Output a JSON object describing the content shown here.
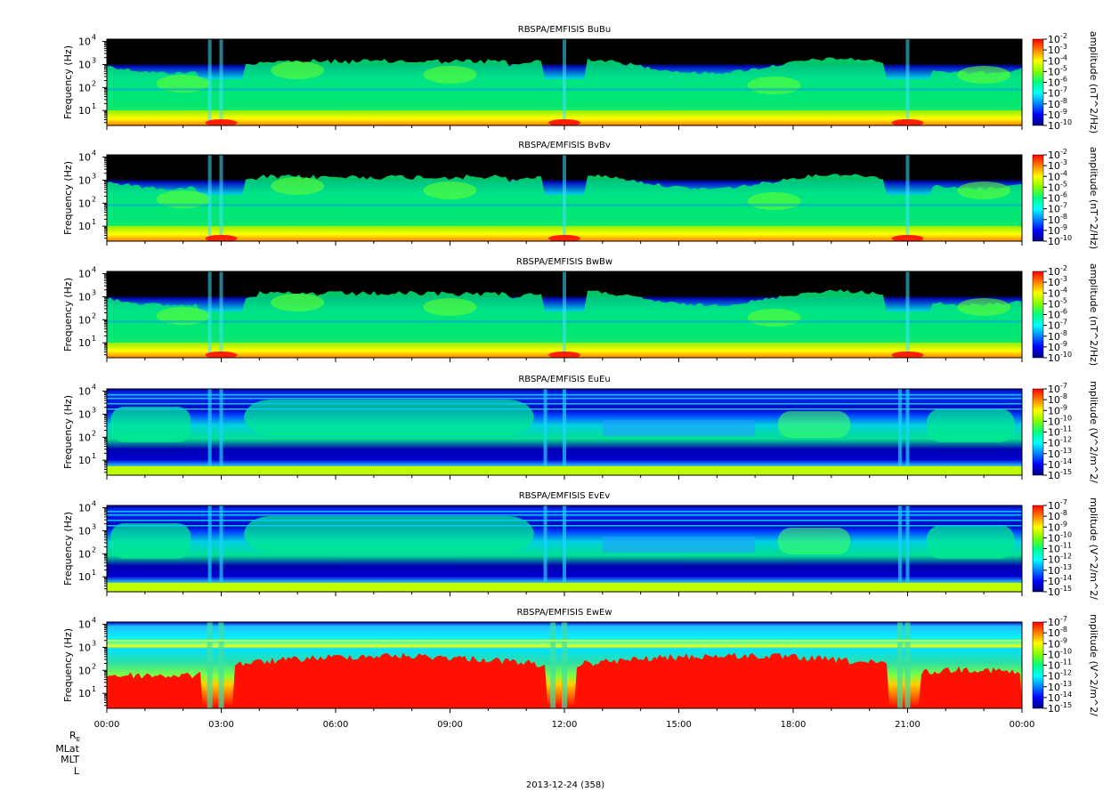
{
  "chart_data": [
    {
      "type": "heatmap",
      "title": "RBSPA/EMFISIS  BuBu",
      "ylabel": "Frequency (Hz)",
      "y_scale": "log",
      "y_ticks": [
        {
          "base": "10",
          "exp": "1"
        },
        {
          "base": "10",
          "exp": "2"
        },
        {
          "base": "10",
          "exp": "3"
        },
        {
          "base": "10",
          "exp": "4"
        }
      ],
      "colorbar_label": "amplitude (nT^2/Hz)",
      "colorbar_ticks": [
        "-2",
        "-3",
        "-4",
        "-5",
        "-6",
        "-7",
        "-8",
        "-9",
        "-10"
      ],
      "pattern": "b"
    },
    {
      "type": "heatmap",
      "title": "RBSPA/EMFISIS  BvBv",
      "ylabel": "Frequency (Hz)",
      "y_scale": "log",
      "y_ticks": [
        {
          "base": "10",
          "exp": "1"
        },
        {
          "base": "10",
          "exp": "2"
        },
        {
          "base": "10",
          "exp": "3"
        },
        {
          "base": "10",
          "exp": "4"
        }
      ],
      "colorbar_label": "amplitude (nT^2/Hz)",
      "colorbar_ticks": [
        "-2",
        "-3",
        "-4",
        "-5",
        "-6",
        "-7",
        "-8",
        "-9",
        "-10"
      ],
      "pattern": "b"
    },
    {
      "type": "heatmap",
      "title": "RBSPA/EMFISIS  BwBw",
      "ylabel": "Frequency (Hz)",
      "y_scale": "log",
      "y_ticks": [
        {
          "base": "10",
          "exp": "1"
        },
        {
          "base": "10",
          "exp": "2"
        },
        {
          "base": "10",
          "exp": "3"
        },
        {
          "base": "10",
          "exp": "4"
        }
      ],
      "colorbar_label": "amplitude (nT^2/Hz)",
      "colorbar_ticks": [
        "-2",
        "-3",
        "-4",
        "-5",
        "-6",
        "-7",
        "-8",
        "-9",
        "-10"
      ],
      "pattern": "bw"
    },
    {
      "type": "heatmap",
      "title": "RBSPA/EMFISIS  EuEu",
      "ylabel": "Frequency (Hz)",
      "y_scale": "log",
      "y_ticks": [
        {
          "base": "10",
          "exp": "1"
        },
        {
          "base": "10",
          "exp": "2"
        },
        {
          "base": "10",
          "exp": "3"
        },
        {
          "base": "10",
          "exp": "4"
        }
      ],
      "colorbar_label": "mplitude (V^2/m^2/",
      "colorbar_ticks": [
        "-7",
        "-8",
        "-9",
        "-10",
        "-11",
        "-12",
        "-13",
        "-14",
        "-15"
      ],
      "pattern": "e"
    },
    {
      "type": "heatmap",
      "title": "RBSPA/EMFISIS  EvEv",
      "ylabel": "Frequency (Hz)",
      "y_scale": "log",
      "y_ticks": [
        {
          "base": "10",
          "exp": "1"
        },
        {
          "base": "10",
          "exp": "2"
        },
        {
          "base": "10",
          "exp": "3"
        },
        {
          "base": "10",
          "exp": "4"
        }
      ],
      "colorbar_label": "mplitude (V^2/m^2/",
      "colorbar_ticks": [
        "-7",
        "-8",
        "-9",
        "-10",
        "-11",
        "-12",
        "-13",
        "-14",
        "-15"
      ],
      "pattern": "e"
    },
    {
      "type": "heatmap",
      "title": "RBSPA/EMFISIS  EwEw",
      "ylabel": "Frequency (Hz)",
      "y_scale": "log",
      "y_ticks": [
        {
          "base": "10",
          "exp": "1"
        },
        {
          "base": "10",
          "exp": "2"
        },
        {
          "base": "10",
          "exp": "3"
        },
        {
          "base": "10",
          "exp": "4"
        }
      ],
      "colorbar_label": "mplitude (V^2/m^2/",
      "colorbar_ticks": [
        "-7",
        "-8",
        "-9",
        "-10",
        "-11",
        "-12",
        "-13",
        "-14",
        "-15"
      ],
      "pattern": "ew"
    }
  ],
  "x_axis": {
    "ticks": [
      "00:00",
      "03:00",
      "06:00",
      "09:00",
      "12:00",
      "15:00",
      "18:00",
      "21:00",
      "00:00"
    ],
    "range_hours": [
      0,
      24
    ]
  },
  "ephemeris_labels": {
    "re": "R",
    "re_sub": "E",
    "mlat": "MLat",
    "mlt": "MLT",
    "l": "L"
  },
  "footer_date": "2013-12-24 (358)",
  "colorscale": [
    "#000080",
    "#0000ff",
    "#0080ff",
    "#00ffff",
    "#00ff80",
    "#80ff00",
    "#ffff00",
    "#ff8000",
    "#ff0000"
  ]
}
